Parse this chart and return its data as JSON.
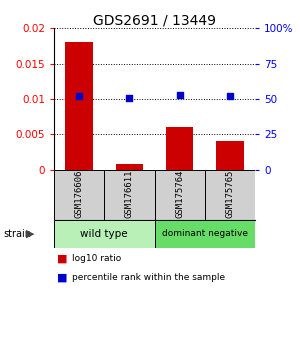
{
  "title": "GDS2691 / 13449",
  "samples": [
    "GSM176606",
    "GSM176611",
    "GSM175764",
    "GSM175765"
  ],
  "bar_values": [
    0.018,
    0.0008,
    0.006,
    0.004
  ],
  "scatter_values": [
    52,
    51,
    53,
    52
  ],
  "bar_color": "#cc0000",
  "scatter_color": "#0000cc",
  "ylim_left": [
    0,
    0.02
  ],
  "ylim_right": [
    0,
    100
  ],
  "yticks_left": [
    0,
    0.005,
    0.01,
    0.015,
    0.02
  ],
  "ytick_labels_left": [
    "0",
    "0.005",
    "0.01",
    "0.015",
    "0.02"
  ],
  "yticks_right": [
    0,
    25,
    50,
    75,
    100
  ],
  "ytick_labels_right": [
    "0",
    "25",
    "50",
    "75",
    "100%"
  ],
  "groups": [
    {
      "label": "wild type",
      "indices": [
        0,
        1
      ],
      "color": "#aaffaa"
    },
    {
      "label": "dominant negative",
      "indices": [
        2,
        3
      ],
      "color": "#66dd66"
    }
  ],
  "legend_items": [
    {
      "color": "#cc0000",
      "label": "log10 ratio"
    },
    {
      "color": "#0000cc",
      "label": "percentile rank within the sample"
    }
  ],
  "x_positions": [
    0,
    1,
    2,
    3
  ],
  "bar_width": 0.55,
  "sample_panel_color": "#d0d0d0",
  "group1_color": "#b8f0b8",
  "group2_color": "#66dd66"
}
